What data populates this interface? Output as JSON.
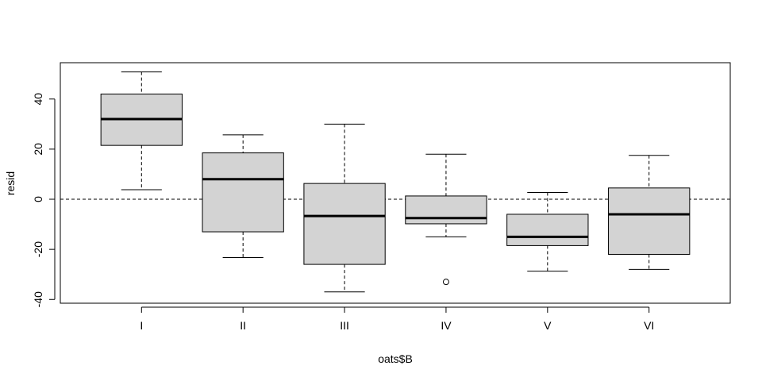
{
  "chart_data": {
    "type": "boxplot",
    "title": "",
    "xlabel": "oats$B",
    "ylabel": "resid",
    "categories": [
      "I",
      "II",
      "III",
      "IV",
      "V",
      "VI"
    ],
    "boxes": [
      {
        "category": "I",
        "whisker_low": 3.8,
        "q1": 21.5,
        "median": 32.0,
        "q3": 42.0,
        "whisker_high": 50.8,
        "outliers": []
      },
      {
        "category": "II",
        "whisker_low": -23.3,
        "q1": -13.0,
        "median": 8.0,
        "q3": 18.5,
        "whisker_high": 25.7,
        "outliers": []
      },
      {
        "category": "III",
        "whisker_low": -37.0,
        "q1": -26.0,
        "median": -6.7,
        "q3": 6.3,
        "whisker_high": 30.0,
        "outliers": []
      },
      {
        "category": "IV",
        "whisker_low": -15.0,
        "q1": -9.8,
        "median": -7.5,
        "q3": 1.3,
        "whisker_high": 18.0,
        "outliers": [
          -33.0
        ]
      },
      {
        "category": "V",
        "whisker_low": -28.7,
        "q1": -18.5,
        "median": -15.0,
        "q3": -6.0,
        "whisker_high": 2.7,
        "outliers": []
      },
      {
        "category": "VI",
        "whisker_low": -28.0,
        "q1": -22.0,
        "median": -6.0,
        "q3": 4.5,
        "whisker_high": 17.5,
        "outliers": []
      }
    ],
    "reference_line": {
      "y": 0,
      "style": "dashed"
    },
    "ylim": [
      -41.5,
      54.5
    ],
    "yticks": [
      -40,
      -20,
      0,
      20,
      40
    ],
    "box_color": "#d3d3d3",
    "grid": false,
    "legend": "none"
  }
}
